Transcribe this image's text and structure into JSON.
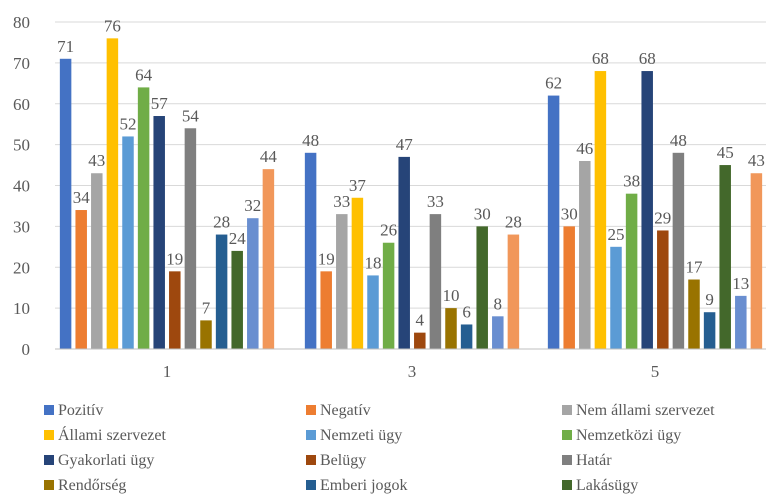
{
  "chart_data": {
    "type": "bar",
    "categories": [
      "1",
      "3",
      "5"
    ],
    "ylim": [
      0,
      80
    ],
    "yticks": [
      0,
      10,
      20,
      30,
      40,
      50,
      60,
      70,
      80
    ],
    "grid": true,
    "legend_position": "bottom",
    "series": [
      {
        "name": "Pozitív",
        "color": "#4472C4",
        "values": [
          71,
          48,
          62
        ]
      },
      {
        "name": "Negatív",
        "color": "#ED7D31",
        "values": [
          34,
          19,
          30
        ]
      },
      {
        "name": "Nem állami szervezet",
        "color": "#A5A5A5",
        "values": [
          43,
          33,
          46
        ]
      },
      {
        "name": "Állami szervezet",
        "color": "#FFC000",
        "values": [
          76,
          37,
          68
        ]
      },
      {
        "name": "Nemzeti ügy",
        "color": "#5B9BD5",
        "values": [
          52,
          18,
          25
        ]
      },
      {
        "name": "Nemzetközi ügy",
        "color": "#70AD47",
        "values": [
          64,
          26,
          38
        ]
      },
      {
        "name": "Gyakorlati ügy",
        "color": "#264478",
        "values": [
          57,
          47,
          68
        ]
      },
      {
        "name": "Belügy",
        "color": "#9E480E",
        "values": [
          19,
          4,
          29
        ]
      },
      {
        "name": "Határ",
        "color": "#7F7F7F",
        "values": [
          54,
          33,
          48
        ]
      },
      {
        "name": "Rendőrség",
        "color": "#997300",
        "values": [
          7,
          10,
          17
        ]
      },
      {
        "name": "Emberi jogok",
        "color": "#255E91",
        "values": [
          28,
          6,
          9
        ]
      },
      {
        "name": "Lakásügy",
        "color": "#43682B",
        "values": [
          24,
          30,
          45
        ]
      },
      {
        "name": "",
        "color": "#698ED0",
        "values": [
          32,
          8,
          13
        ]
      },
      {
        "name": "",
        "color": "#F1975A",
        "values": [
          44,
          28,
          43
        ]
      }
    ]
  }
}
